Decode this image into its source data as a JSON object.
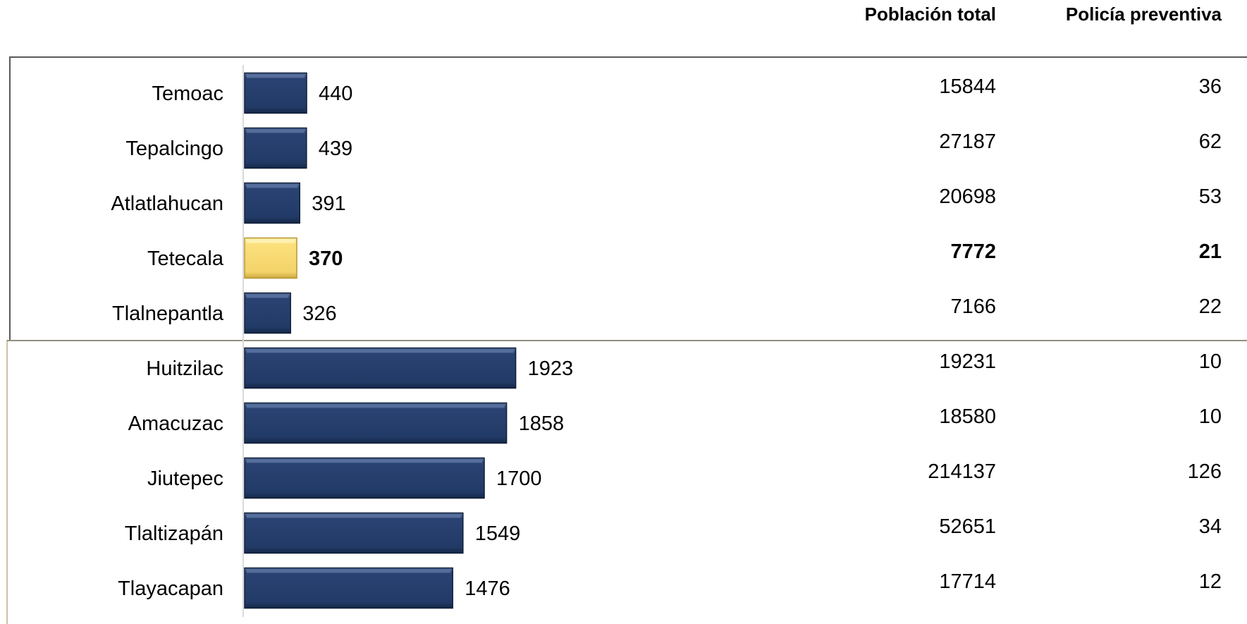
{
  "colors": {
    "bar": "#233a66",
    "highlight": "#f5d66a"
  },
  "chart_data": {
    "type": "bar",
    "orientation": "horizontal",
    "columns": {
      "population_header": "Población total",
      "police_header": "Policía preventiva"
    },
    "groups": [
      {
        "rows": [
          {
            "name": "Temoac",
            "value": 440,
            "population": 15844,
            "police": 36
          },
          {
            "name": "Tepalcingo",
            "value": 439,
            "population": 27187,
            "police": 62
          },
          {
            "name": "Atlatlahucan",
            "value": 391,
            "population": 20698,
            "police": 53
          },
          {
            "name": "Tetecala",
            "value": 370,
            "population": 7772,
            "police": 21,
            "highlight": true
          },
          {
            "name": "Tlalnepantla",
            "value": 326,
            "population": 7166,
            "police": 22
          }
        ]
      },
      {
        "rows": [
          {
            "name": "Huitzilac",
            "value": 1923,
            "population": 19231,
            "police": 10
          },
          {
            "name": "Amacuzac",
            "value": 1858,
            "population": 18580,
            "police": 10
          },
          {
            "name": "Jiutepec",
            "value": 1700,
            "population": 214137,
            "police": 126
          },
          {
            "name": "Tlaltizapán",
            "value": 1549,
            "population": 52651,
            "police": 34
          },
          {
            "name": "Tlayacapan",
            "value": 1476,
            "population": 17714,
            "police": 12
          }
        ]
      }
    ]
  }
}
